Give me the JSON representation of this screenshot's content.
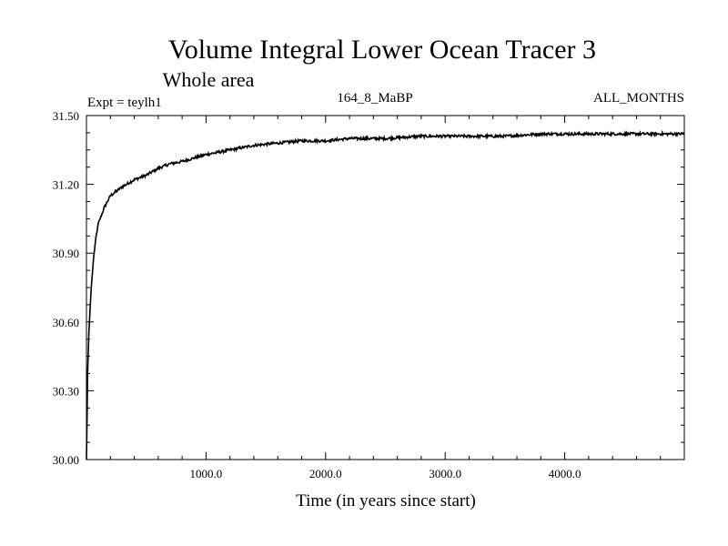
{
  "chart_data": {
    "type": "line",
    "title": "Volume Integral Lower Ocean Tracer 3",
    "subtitle": "Whole area",
    "expt_label": "Expt = teylh1",
    "period_label": "164_8_MaBP",
    "months_label": "ALL_MONTHS",
    "xlabel": "Time (in years since start)",
    "ylabel": "",
    "xlim": [
      0,
      5000
    ],
    "ylim": [
      30.0,
      31.5
    ],
    "x_ticks": [
      1000,
      2000,
      3000,
      4000
    ],
    "x_tick_labels": [
      "1000.0",
      "2000.0",
      "3000.0",
      "4000.0"
    ],
    "y_ticks": [
      30.0,
      30.3,
      30.6,
      30.9,
      31.2,
      31.5
    ],
    "y_tick_labels": [
      "30.00",
      "30.30",
      "30.60",
      "30.90",
      "31.20",
      "31.50"
    ],
    "grid": false,
    "series": [
      {
        "name": "teylh1",
        "x": [
          0,
          10,
          20,
          40,
          60,
          80,
          100,
          150,
          200,
          300,
          400,
          500,
          600,
          700,
          800,
          1000,
          1200,
          1400,
          1600,
          1800,
          2000,
          2200,
          2500,
          2800,
          3000,
          3200,
          3500,
          3800,
          4000,
          4200,
          4500,
          4800,
          5000
        ],
        "values": [
          30.0,
          30.38,
          30.55,
          30.75,
          30.88,
          30.97,
          31.03,
          31.1,
          31.15,
          31.19,
          31.22,
          31.24,
          31.27,
          31.29,
          31.3,
          31.33,
          31.35,
          31.37,
          31.38,
          31.39,
          31.39,
          31.4,
          31.4,
          31.41,
          31.41,
          31.41,
          31.41,
          31.42,
          31.42,
          31.42,
          31.42,
          31.42,
          31.42
        ]
      }
    ]
  }
}
